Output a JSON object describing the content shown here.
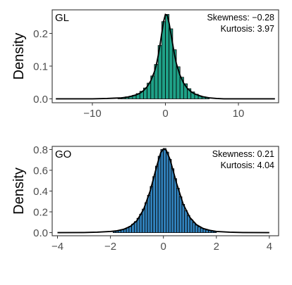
{
  "chart_data": [
    {
      "type": "histogram",
      "tag": "GL",
      "ylabel": "Density",
      "xlabel": "",
      "xlim": [
        -15.5,
        15.5
      ],
      "ylim": [
        -0.012,
        0.272
      ],
      "xticks": [
        -10,
        0,
        10
      ],
      "xtick_labels": [
        "−10",
        "0",
        "10"
      ],
      "yticks": [
        0.0,
        0.1,
        0.2
      ],
      "ytick_labels": [
        "0.0",
        "0.1",
        "0.2"
      ],
      "stats": {
        "skewness": "Skewness: −0.28",
        "kurtosis": "Kurtosis: 3.97"
      },
      "fill_color": "#1fa187",
      "bin_width": 0.5,
      "bins": [
        {
          "x": -6.25,
          "y": 0.003
        },
        {
          "x": -5.75,
          "y": 0.004
        },
        {
          "x": -5.25,
          "y": 0.006
        },
        {
          "x": -4.75,
          "y": 0.008
        },
        {
          "x": -4.25,
          "y": 0.011
        },
        {
          "x": -3.75,
          "y": 0.016
        },
        {
          "x": -3.25,
          "y": 0.023
        },
        {
          "x": -2.75,
          "y": 0.033
        },
        {
          "x": -2.25,
          "y": 0.048
        },
        {
          "x": -1.75,
          "y": 0.07
        },
        {
          "x": -1.25,
          "y": 0.105
        },
        {
          "x": -0.75,
          "y": 0.163
        },
        {
          "x": -0.25,
          "y": 0.236
        },
        {
          "x": 0.25,
          "y": 0.258
        },
        {
          "x": 0.75,
          "y": 0.214
        },
        {
          "x": 1.25,
          "y": 0.15
        },
        {
          "x": 1.75,
          "y": 0.098
        },
        {
          "x": 2.25,
          "y": 0.066
        },
        {
          "x": 2.75,
          "y": 0.046
        },
        {
          "x": 3.25,
          "y": 0.031
        },
        {
          "x": 3.75,
          "y": 0.021
        },
        {
          "x": 4.25,
          "y": 0.014
        },
        {
          "x": 4.75,
          "y": 0.009
        },
        {
          "x": 5.25,
          "y": 0.006
        },
        {
          "x": 5.75,
          "y": 0.004
        }
      ],
      "density_curve": {
        "x": [
          -15,
          -10,
          -8,
          -7,
          -6,
          -5,
          -4,
          -3.5,
          -3,
          -2.5,
          -2,
          -1.5,
          -1.25,
          -1,
          -0.75,
          -0.5,
          -0.25,
          0,
          0.25,
          0.5,
          0.75,
          1,
          1.25,
          1.5,
          2,
          2.5,
          3,
          3.5,
          4,
          5,
          6,
          7,
          8,
          10,
          15
        ],
        "y": [
          0.0,
          0.0,
          0.001,
          0.002,
          0.003,
          0.006,
          0.012,
          0.017,
          0.025,
          0.037,
          0.055,
          0.083,
          0.103,
          0.13,
          0.163,
          0.2,
          0.236,
          0.258,
          0.255,
          0.232,
          0.2,
          0.167,
          0.135,
          0.108,
          0.072,
          0.048,
          0.032,
          0.022,
          0.015,
          0.007,
          0.003,
          0.001,
          0.0,
          0.0,
          0.0
        ]
      }
    },
    {
      "type": "histogram",
      "tag": "GO",
      "ylabel": "Density",
      "xlabel": "",
      "xlim": [
        -4.2,
        4.35
      ],
      "ylim": [
        -0.03,
        0.83
      ],
      "xticks": [
        -4,
        -2,
        0,
        2,
        4
      ],
      "xtick_labels": [
        "−4",
        "−2",
        "0",
        "2",
        "4"
      ],
      "yticks": [
        0.0,
        0.2,
        0.4,
        0.6,
        0.8
      ],
      "ytick_labels": [
        "0.0",
        "0.2",
        "0.4",
        "0.6",
        "0.8"
      ],
      "stats": {
        "skewness": "Skewness: 0.21",
        "kurtosis": "Kurtosis: 4.04"
      },
      "fill_color": "#3182bd",
      "bin_width": 0.1,
      "bins": [
        {
          "x": -1.85,
          "y": 0.012
        },
        {
          "x": -1.75,
          "y": 0.016
        },
        {
          "x": -1.65,
          "y": 0.021
        },
        {
          "x": -1.55,
          "y": 0.028
        },
        {
          "x": -1.45,
          "y": 0.036
        },
        {
          "x": -1.35,
          "y": 0.047
        },
        {
          "x": -1.25,
          "y": 0.062
        },
        {
          "x": -1.15,
          "y": 0.082
        },
        {
          "x": -1.05,
          "y": 0.106
        },
        {
          "x": -0.95,
          "y": 0.138
        },
        {
          "x": -0.85,
          "y": 0.178
        },
        {
          "x": -0.75,
          "y": 0.227
        },
        {
          "x": -0.65,
          "y": 0.288
        },
        {
          "x": -0.55,
          "y": 0.36
        },
        {
          "x": -0.45,
          "y": 0.445
        },
        {
          "x": -0.35,
          "y": 0.54
        },
        {
          "x": -0.25,
          "y": 0.64
        },
        {
          "x": -0.15,
          "y": 0.735
        },
        {
          "x": -0.05,
          "y": 0.8
        },
        {
          "x": 0.05,
          "y": 0.81
        },
        {
          "x": 0.15,
          "y": 0.775
        },
        {
          "x": 0.25,
          "y": 0.705
        },
        {
          "x": 0.35,
          "y": 0.615
        },
        {
          "x": 0.45,
          "y": 0.52
        },
        {
          "x": 0.55,
          "y": 0.428
        },
        {
          "x": 0.65,
          "y": 0.345
        },
        {
          "x": 0.75,
          "y": 0.272
        },
        {
          "x": 0.85,
          "y": 0.212
        },
        {
          "x": 0.95,
          "y": 0.164
        },
        {
          "x": 1.05,
          "y": 0.126
        },
        {
          "x": 1.15,
          "y": 0.096
        },
        {
          "x": 1.25,
          "y": 0.073
        },
        {
          "x": 1.35,
          "y": 0.056
        },
        {
          "x": 1.45,
          "y": 0.043
        },
        {
          "x": 1.55,
          "y": 0.033
        },
        {
          "x": 1.65,
          "y": 0.025
        },
        {
          "x": 1.75,
          "y": 0.019
        },
        {
          "x": 1.85,
          "y": 0.014
        },
        {
          "x": 1.95,
          "y": 0.011
        }
      ],
      "density_curve": {
        "x": [
          -4,
          -3,
          -2.5,
          -2,
          -1.75,
          -1.5,
          -1.25,
          -1,
          -0.75,
          -0.5,
          -0.25,
          -0.1,
          0,
          0.1,
          0.25,
          0.5,
          0.75,
          1,
          1.25,
          1.5,
          1.75,
          2,
          2.5,
          3,
          4
        ],
        "y": [
          0.0,
          0.001,
          0.004,
          0.011,
          0.018,
          0.032,
          0.06,
          0.115,
          0.222,
          0.4,
          0.64,
          0.77,
          0.805,
          0.795,
          0.705,
          0.472,
          0.272,
          0.146,
          0.076,
          0.04,
          0.022,
          0.011,
          0.004,
          0.001,
          0.0
        ]
      }
    }
  ]
}
